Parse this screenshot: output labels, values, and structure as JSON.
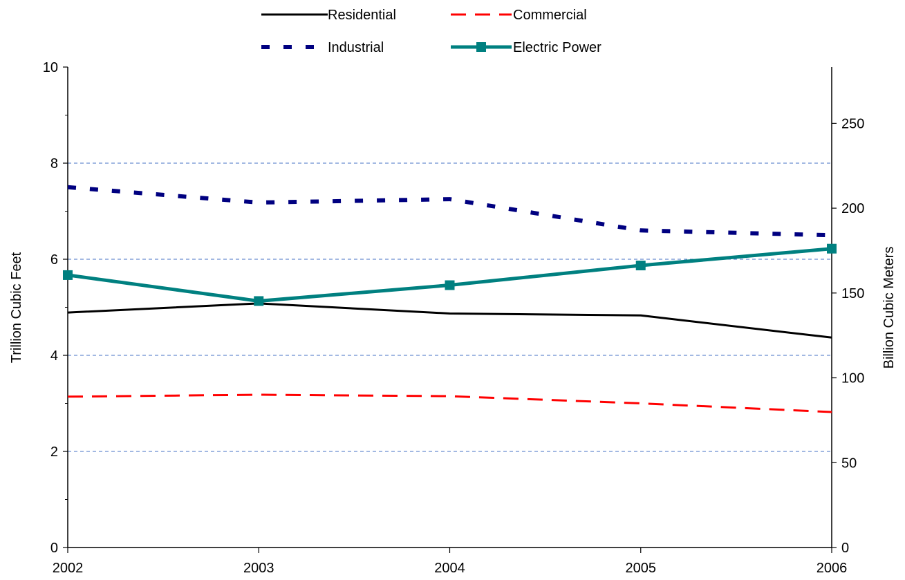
{
  "chart_data": {
    "type": "line",
    "title": "",
    "x": [
      "2002",
      "2003",
      "2004",
      "2005",
      "2006"
    ],
    "ylabel": "Trillion Cubic Feet",
    "ylim": [
      0,
      10
    ],
    "y_ticks": [
      "0",
      "2",
      "4",
      "6",
      "8",
      "10"
    ],
    "y2label": "Billion Cubic Meters",
    "y2lim": [
      0,
      283.17
    ],
    "y2_ticks": [
      "0",
      "50",
      "100",
      "150",
      "200",
      "250"
    ],
    "grid": "horizontal dashed at major ticks",
    "legend_position": "top-center",
    "series": [
      {
        "name": "Residential",
        "values": [
          4.89,
          5.08,
          4.87,
          4.83,
          4.37
        ],
        "color": "#000000",
        "style": "solid"
      },
      {
        "name": "Commercial",
        "values": [
          3.14,
          3.18,
          3.15,
          3.0,
          2.82
        ],
        "color": "#ff0000",
        "style": "dashed"
      },
      {
        "name": "Industrial",
        "values": [
          7.5,
          7.18,
          7.25,
          6.6,
          6.5
        ],
        "color": "#000080",
        "style": "dotted"
      },
      {
        "name": "Electric Power",
        "values": [
          5.67,
          5.13,
          5.46,
          5.87,
          6.22
        ],
        "color": "#008080",
        "style": "solid-square-markers"
      }
    ]
  }
}
